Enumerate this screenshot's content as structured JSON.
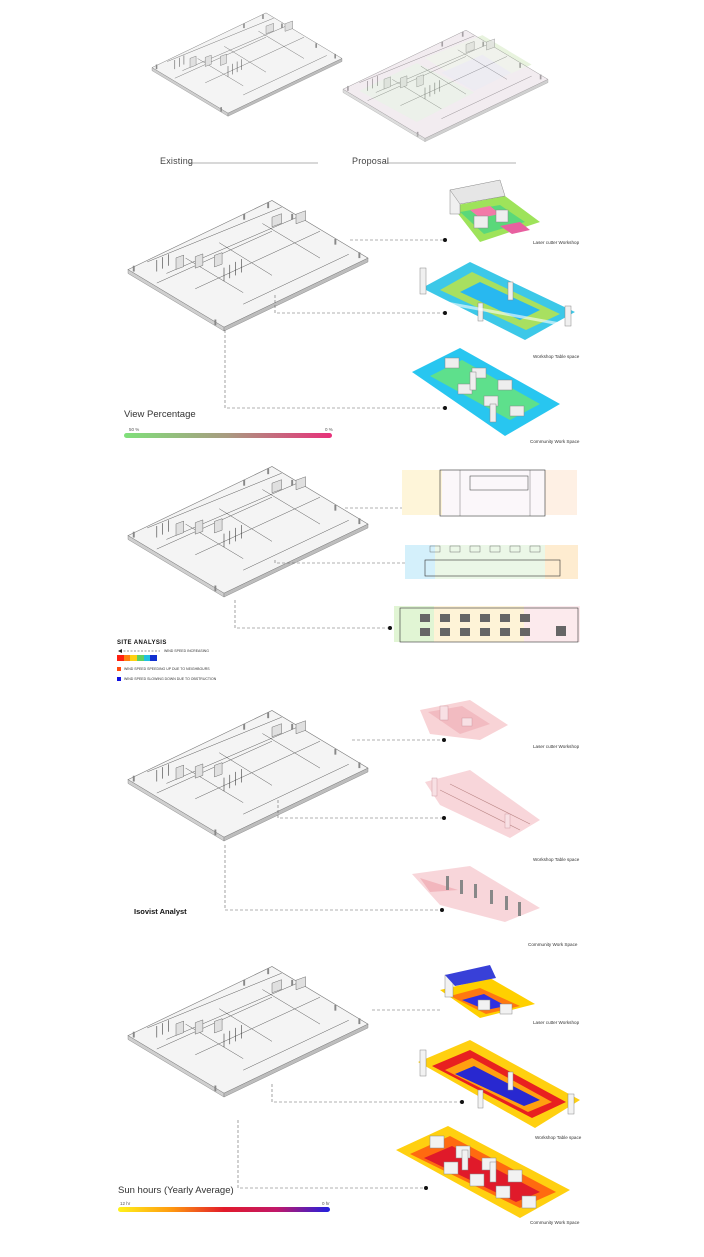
{
  "top": {
    "existing_label": "Existing",
    "proposal_label": "Proposal"
  },
  "view": {
    "title": "View Percentage",
    "max_label": "50 %",
    "min_label": "0 %",
    "panels": [
      "Laser cutter Workshop",
      "Workshop Table space",
      "Community Work Space"
    ]
  },
  "site": {
    "title": "SITE ANALYSIS",
    "note_arrow": "WIND SPEED INCREASING",
    "note_red": "WIND SPEED SPEEDING UP DUE TO NEIGHBOURS",
    "note_blue": "WIND SPEED SLOWING DOWN DUE TO OBSTRUCTION"
  },
  "isovist": {
    "title": "Isovist Analyst",
    "panels": [
      "Laser cutter Workshop",
      "Workshop Table space",
      "Community Work Space"
    ]
  },
  "sun": {
    "title": "Sun hours (Yearly Average)",
    "max_label": "12 hr",
    "min_label": "0 hr",
    "panels": [
      "Laser cutter Workshop",
      "Workshop Table space",
      "Community Work Space"
    ]
  },
  "colors": {
    "view_gradient": [
      "#7fe07a",
      "#a99a80",
      "#e8307a"
    ],
    "sun_gradient": [
      "#fff21a",
      "#ff9a10",
      "#e21a2a",
      "#c0186a",
      "#2020e0"
    ],
    "wind_scale": [
      "#ff2010",
      "#ff8010",
      "#ffd010",
      "#60d060",
      "#20c0e0",
      "#1030d0"
    ],
    "wind_red": "#ff4a10",
    "wind_blue": "#1010e0"
  }
}
